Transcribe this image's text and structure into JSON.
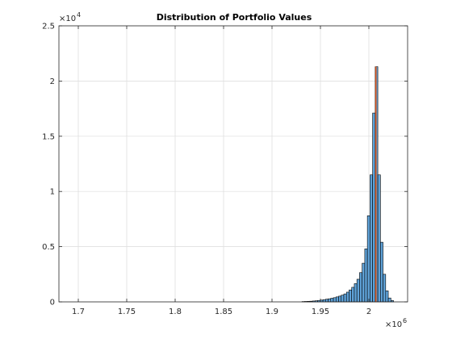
{
  "chart_data": {
    "type": "bar",
    "title": "Distribution of Portfolio Values",
    "xlabel": "",
    "ylabel": "",
    "x_exponent_label": "×10",
    "x_exponent_power": "6",
    "y_exponent_label": "×10",
    "y_exponent_power": "4",
    "xlim": [
      1.68,
      2.04
    ],
    "ylim": [
      0,
      2.5
    ],
    "x_ticks": [
      1.7,
      1.75,
      1.8,
      1.85,
      1.9,
      1.95,
      2.0
    ],
    "x_tick_labels": [
      "1.7",
      "1.75",
      "1.8",
      "1.85",
      "1.9",
      "1.95",
      "2"
    ],
    "y_ticks": [
      0,
      0.5,
      1,
      1.5,
      2,
      2.5
    ],
    "y_tick_labels": [
      "0",
      "0.5",
      "1",
      "1.5",
      "2",
      "2.5"
    ],
    "grid": true,
    "bar_color": "#5fa2d8",
    "bar_edge_color": "#000000",
    "marker_line_color": "#d95319",
    "marker_line_x": 2.0005,
    "marker_line_top": 2.13,
    "bin_width": 0.0027,
    "bins": [
      {
        "x": 1.9323,
        "y": 0.003
      },
      {
        "x": 1.935,
        "y": 0.004
      },
      {
        "x": 1.9377,
        "y": 0.005
      },
      {
        "x": 1.9404,
        "y": 0.006
      },
      {
        "x": 1.9431,
        "y": 0.008
      },
      {
        "x": 1.9458,
        "y": 0.01
      },
      {
        "x": 1.9485,
        "y": 0.013
      },
      {
        "x": 1.9512,
        "y": 0.016
      },
      {
        "x": 1.9539,
        "y": 0.02
      },
      {
        "x": 1.9566,
        "y": 0.024
      },
      {
        "x": 1.9593,
        "y": 0.028
      },
      {
        "x": 1.962,
        "y": 0.033
      },
      {
        "x": 1.9647,
        "y": 0.038
      },
      {
        "x": 1.9674,
        "y": 0.045
      },
      {
        "x": 1.9701,
        "y": 0.052
      },
      {
        "x": 1.9728,
        "y": 0.061
      },
      {
        "x": 1.9755,
        "y": 0.072
      },
      {
        "x": 1.9782,
        "y": 0.088
      },
      {
        "x": 1.9809,
        "y": 0.108
      },
      {
        "x": 1.9836,
        "y": 0.132
      },
      {
        "x": 1.9863,
        "y": 0.165
      },
      {
        "x": 1.989,
        "y": 0.205
      },
      {
        "x": 1.9917,
        "y": 0.265
      },
      {
        "x": 1.9944,
        "y": 0.35
      },
      {
        "x": 1.9971,
        "y": 0.48
      },
      {
        "x": 1.9998,
        "y": 0.78
      },
      {
        "x": 2.0025,
        "y": 1.15
      },
      {
        "x": 2.0052,
        "y": 1.71
      },
      {
        "x": 2.0079,
        "y": 2.13
      },
      {
        "x": 2.0106,
        "y": 1.15
      },
      {
        "x": 2.0133,
        "y": 0.54
      },
      {
        "x": 2.016,
        "y": 0.25
      },
      {
        "x": 2.0187,
        "y": 0.1
      },
      {
        "x": 2.0214,
        "y": 0.035
      },
      {
        "x": 2.0241,
        "y": 0.012
      }
    ]
  }
}
